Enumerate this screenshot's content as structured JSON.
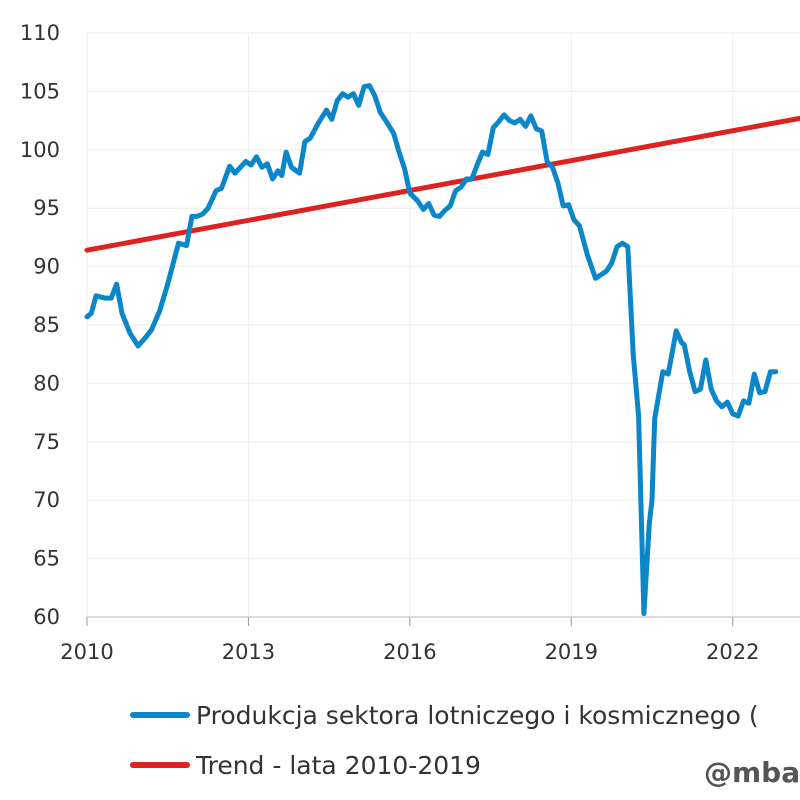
{
  "chart_data": {
    "type": "line",
    "title": "",
    "xlabel": "",
    "ylabel": "",
    "xlim": [
      2010,
      2023.25
    ],
    "ylim": [
      60,
      110
    ],
    "grid": true,
    "legend_position": "bottom",
    "y_ticks": [
      110,
      105,
      100,
      95,
      90,
      85,
      80,
      75,
      70,
      65,
      60
    ],
    "x_ticks": [
      2010,
      2013,
      2016,
      2019,
      2022
    ],
    "series": [
      {
        "name": "Produkcja sektora lotniczego i kosmicznego (",
        "color": "#0a86c9",
        "x": [
          2010.0,
          2010.08,
          2010.17,
          2010.33,
          2010.45,
          2010.55,
          2010.65,
          2010.8,
          2010.95,
          2011.1,
          2011.2,
          2011.35,
          2011.5,
          2011.7,
          2011.85,
          2011.95,
          2012.05,
          2012.15,
          2012.25,
          2012.4,
          2012.5,
          2012.65,
          2012.75,
          2012.85,
          2012.95,
          2013.05,
          2013.15,
          2013.25,
          2013.35,
          2013.45,
          2013.55,
          2013.62,
          2013.7,
          2013.8,
          2013.95,
          2014.05,
          2014.15,
          2014.3,
          2014.45,
          2014.55,
          2014.65,
          2014.75,
          2014.85,
          2014.95,
          2015.05,
          2015.15,
          2015.25,
          2015.35,
          2015.45,
          2015.55,
          2015.7,
          2015.8,
          2015.9,
          2016.0,
          2016.15,
          2016.25,
          2016.35,
          2016.45,
          2016.55,
          2016.65,
          2016.75,
          2016.85,
          2016.95,
          2017.05,
          2017.15,
          2017.25,
          2017.35,
          2017.45,
          2017.55,
          2017.65,
          2017.75,
          2017.85,
          2017.95,
          2018.05,
          2018.15,
          2018.25,
          2018.35,
          2018.45,
          2018.55,
          2018.65,
          2018.75,
          2018.85,
          2018.95,
          2019.05,
          2019.15,
          2019.3,
          2019.45,
          2019.55,
          2019.65,
          2019.75,
          2019.85,
          2019.95,
          2020.05,
          2020.15,
          2020.25,
          2020.35,
          2020.45,
          2020.5,
          2020.55,
          2020.7,
          2020.8,
          2020.95,
          2021.05,
          2021.1,
          2021.2,
          2021.3,
          2021.4,
          2021.5,
          2021.6,
          2021.7,
          2021.8,
          2021.9,
          2022.0,
          2022.1,
          2022.2,
          2022.3,
          2022.4,
          2022.5,
          2022.6,
          2022.7,
          2022.8
        ],
        "values": [
          85.7,
          86.0,
          87.5,
          87.3,
          87.3,
          88.5,
          86.0,
          84.3,
          83.2,
          84.0,
          84.6,
          86.2,
          88.5,
          92.0,
          91.8,
          94.3,
          94.3,
          94.5,
          95.0,
          96.5,
          96.7,
          98.6,
          98.0,
          98.5,
          99.0,
          98.7,
          99.4,
          98.5,
          98.8,
          97.5,
          98.2,
          97.8,
          99.8,
          98.5,
          98.0,
          100.7,
          101.0,
          102.3,
          103.4,
          102.6,
          104.2,
          104.8,
          104.5,
          104.8,
          103.8,
          105.4,
          105.5,
          104.6,
          103.2,
          102.5,
          101.4,
          99.8,
          98.4,
          96.3,
          95.6,
          94.9,
          95.4,
          94.4,
          94.3,
          94.8,
          95.2,
          96.5,
          96.8,
          97.5,
          97.5,
          98.7,
          99.8,
          99.6,
          101.9,
          102.4,
          103.0,
          102.5,
          102.3,
          102.6,
          102.0,
          102.9,
          101.8,
          101.6,
          99.0,
          98.5,
          97.2,
          95.2,
          95.3,
          94.0,
          93.5,
          91.0,
          89.0,
          89.3,
          89.6,
          90.3,
          91.7,
          92.0,
          91.7,
          82.5,
          77.2,
          60.3,
          68.0,
          70.0,
          77.0,
          81.0,
          80.8,
          84.5,
          83.5,
          83.3,
          81.0,
          79.3,
          79.5,
          82.0,
          79.5,
          78.5,
          78.0,
          78.4,
          77.4,
          77.2,
          78.5,
          78.3,
          80.8,
          79.2,
          79.3,
          81.0,
          81.0
        ]
      },
      {
        "name": "Trend - lata 2010-2019",
        "color": "#dd2222",
        "x": [
          2010.0,
          2023.25
        ],
        "values": [
          91.4,
          102.7
        ]
      }
    ],
    "watermark": "@mba"
  }
}
